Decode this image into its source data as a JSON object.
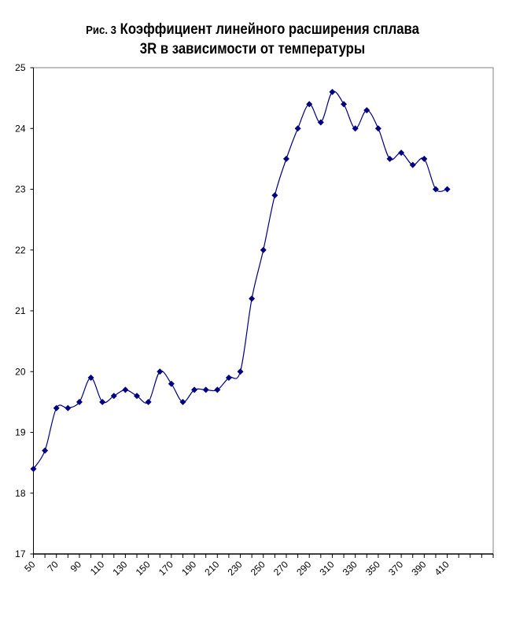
{
  "chart_data": {
    "type": "line",
    "title_prefix": "Рис. 3",
    "title_line1": "Коэффициент линейного расширения сплава",
    "title_line2": "3R в зависимости от температуры",
    "xlabel": "",
    "ylabel": "",
    "x": [
      50,
      60,
      70,
      80,
      90,
      100,
      110,
      120,
      130,
      140,
      150,
      160,
      170,
      180,
      190,
      200,
      210,
      220,
      230,
      240,
      250,
      260,
      270,
      280,
      290,
      300,
      310,
      320,
      330,
      340,
      350,
      360,
      370,
      380,
      390,
      400,
      410
    ],
    "values": [
      18.4,
      18.7,
      19.4,
      19.4,
      19.5,
      19.9,
      19.5,
      19.6,
      19.7,
      19.6,
      19.5,
      20.0,
      19.8,
      19.5,
      19.7,
      19.7,
      19.7,
      19.9,
      20.0,
      21.2,
      22.0,
      22.9,
      23.5,
      24.0,
      24.4,
      24.1,
      24.6,
      24.4,
      24.0,
      24.3,
      24.0,
      23.5,
      23.6,
      23.4,
      23.5,
      23.0,
      23.0
    ],
    "x_categories_range": [
      50,
      450
    ],
    "x_tick_labels": [
      "50",
      "70",
      "90",
      "110",
      "130",
      "150",
      "170",
      "190",
      "210",
      "230",
      "250",
      "270",
      "290",
      "310",
      "330",
      "350",
      "370",
      "390",
      "410"
    ],
    "ylim": [
      17,
      25
    ],
    "y_ticks": [
      "17",
      "18",
      "19",
      "20",
      "21",
      "22",
      "23",
      "24",
      "25"
    ],
    "grid": false,
    "legend": "none",
    "smoothed": true,
    "marker": "diamond",
    "colors": {
      "series": "#000080",
      "axis": "#000000",
      "plot_border": "#808080"
    }
  }
}
